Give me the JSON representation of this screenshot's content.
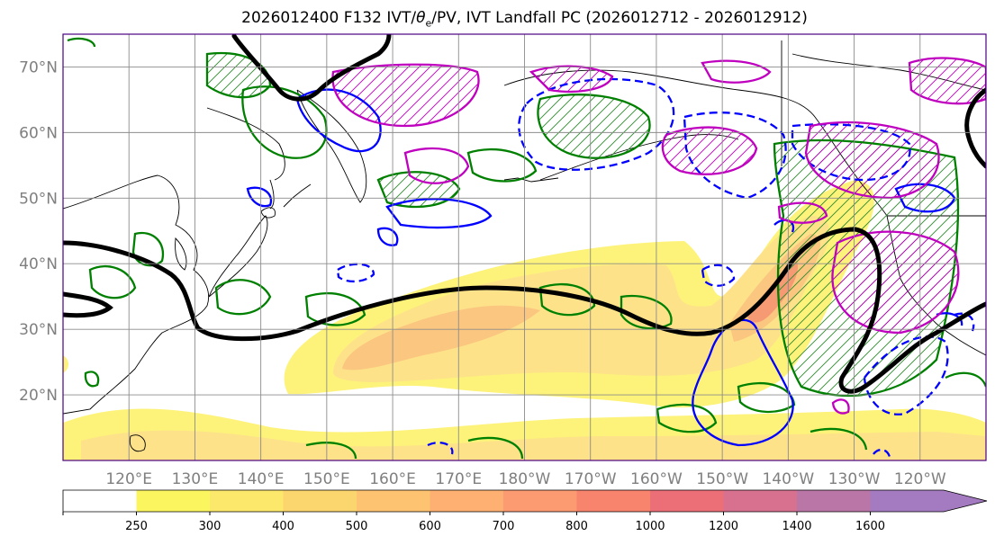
{
  "title": "2026012400 F132 IVT/θe/PV, IVT Landfall PC (2026012712 - 2026012912)",
  "title_parts": {
    "before": "2026012400 F132 IVT/",
    "theta": "θ",
    "sub": "e",
    "after": "/PV, IVT Landfall PC (2026012712 - 2026012912)"
  },
  "map": {
    "lon_range_east_deg": [
      110,
      250
    ],
    "lat_range_deg": [
      10,
      75
    ]
  },
  "lat_labels": [
    "70°N",
    "60°N",
    "50°N",
    "40°N",
    "30°N",
    "20°N"
  ],
  "lon_labels": [
    "120°E",
    "130°E",
    "140°E",
    "150°E",
    "160°E",
    "170°E",
    "180°W",
    "170°W",
    "160°W",
    "150°W",
    "140°W",
    "130°W",
    "120°W"
  ],
  "colorbar": {
    "levels": [
      "250",
      "300",
      "400",
      "500",
      "600",
      "700",
      "800",
      "1000",
      "1200",
      "1400",
      "1600"
    ],
    "colors": [
      "#ffffff",
      "#fbf65f",
      "#fce86a",
      "#fbd56e",
      "#fdc371",
      "#fdb071",
      "#fc9a71",
      "#f8846e",
      "#ec6f78",
      "#d8718f",
      "#b976a6",
      "#a47ac0"
    ]
  },
  "colors": {
    "ivt_light": "#fdf37a",
    "ivt_mid": "#fde28a",
    "ivt_high": "#fbc67f",
    "ivt_peak": "#f59a72",
    "pv_contour": "#000000",
    "green_contour": "#008000",
    "blue_contour": "#0000ff",
    "magenta_contour": "#bf00bf",
    "grid": "#8c8c8c",
    "border": "#4b0082"
  }
}
